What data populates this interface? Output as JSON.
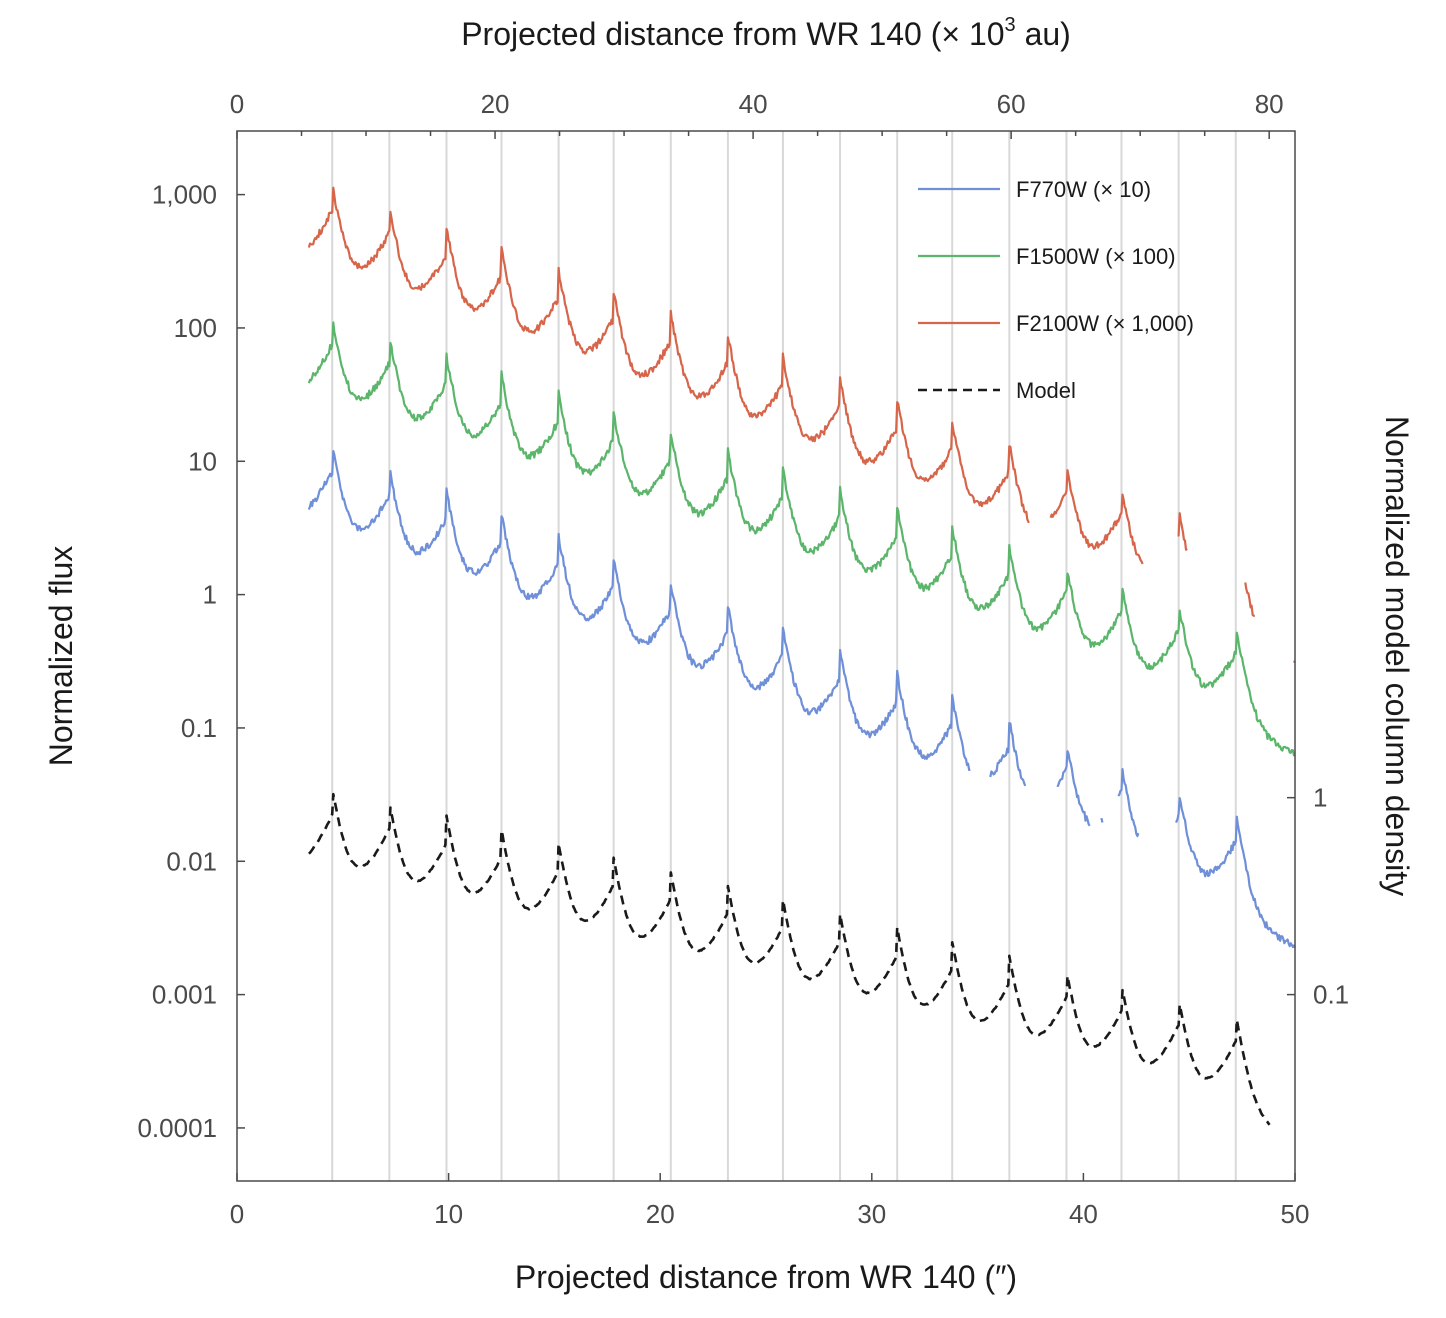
{
  "chart_data": {
    "type": "line",
    "xlabel_bottom": "Projected distance from WR 140 (″)",
    "xlabel_top_prefix": "Projected distance from WR 140 (× 10",
    "xlabel_top_sup": "3",
    "xlabel_top_suffix": " au)",
    "ylabel_left": "Normalized flux",
    "ylabel_right": "Normalized model column density",
    "x_range": [
      0,
      50
    ],
    "x_ticks": [
      "0",
      "10",
      "20",
      "30",
      "40",
      "50"
    ],
    "x_ticks_values": [
      0,
      10,
      20,
      30,
      40,
      50
    ],
    "top_range_kau": [
      0,
      82
    ],
    "top_ticks": [
      "0",
      "20",
      "40",
      "60",
      "80"
    ],
    "top_ticks_values": [
      0,
      20,
      40,
      60,
      80
    ],
    "y_log_range": [
      4e-05,
      3000
    ],
    "y_ticks": [
      "1,000",
      "100",
      "10",
      "1",
      "0.1",
      "0.01",
      "0.001",
      "0.0001"
    ],
    "y_ticks_values": [
      1000,
      100,
      10,
      1,
      0.1,
      0.01,
      0.001,
      0.0001
    ],
    "right_ticks": [
      "1",
      "0.1"
    ],
    "right_ticks_flux_equiv": [
      0.03,
      0.001
    ],
    "shell_positions": [
      4.5,
      7.2,
      9.9,
      12.5,
      15.2,
      17.8,
      20.5,
      23.2,
      25.8,
      28.5,
      31.2,
      33.8,
      36.5,
      39.2,
      41.8,
      44.5,
      47.2
    ],
    "series": [
      {
        "name": "F770W (× 10)",
        "color": "#6f8fd8",
        "dash": false,
        "base": 1.1,
        "peak_amp": 10,
        "decay": 0.09,
        "start": 3.4,
        "end": 50,
        "gaps": [
          [
            34.7,
            35.6
          ],
          [
            37.3,
            38.7
          ],
          [
            40.3,
            40.8
          ],
          [
            40.9,
            41.6
          ],
          [
            42.6,
            44.3
          ]
        ]
      },
      {
        "name": "F1500W (× 100)",
        "color": "#5bb56a",
        "dash": false,
        "base": 10,
        "peak_amp": 10,
        "decay": 0.075,
        "start": 3.4,
        "end": 50,
        "gaps": []
      },
      {
        "name": "F2100W (× 1,000)",
        "color": "#d6654a",
        "dash": false,
        "base": 100,
        "peak_amp": 10,
        "decay": 0.085,
        "start": 3.4,
        "end": 50,
        "gaps": [
          [
            37.5,
            38.4
          ],
          [
            42.8,
            44.4
          ],
          [
            44.9,
            47.6
          ],
          [
            48.1,
            49.9
          ]
        ]
      },
      {
        "name": "Model",
        "color": "#1a1a1a",
        "dash": true,
        "base": 0.007,
        "peak_amp": 4.2,
        "decay": 0.055,
        "start": 3.4,
        "end": 48.8,
        "gaps": []
      }
    ],
    "legend": {
      "position": "top-right",
      "entries": [
        "F770W (× 10)",
        "F1500W (× 100)",
        "F2100W (× 1,000)",
        "Model"
      ]
    }
  }
}
